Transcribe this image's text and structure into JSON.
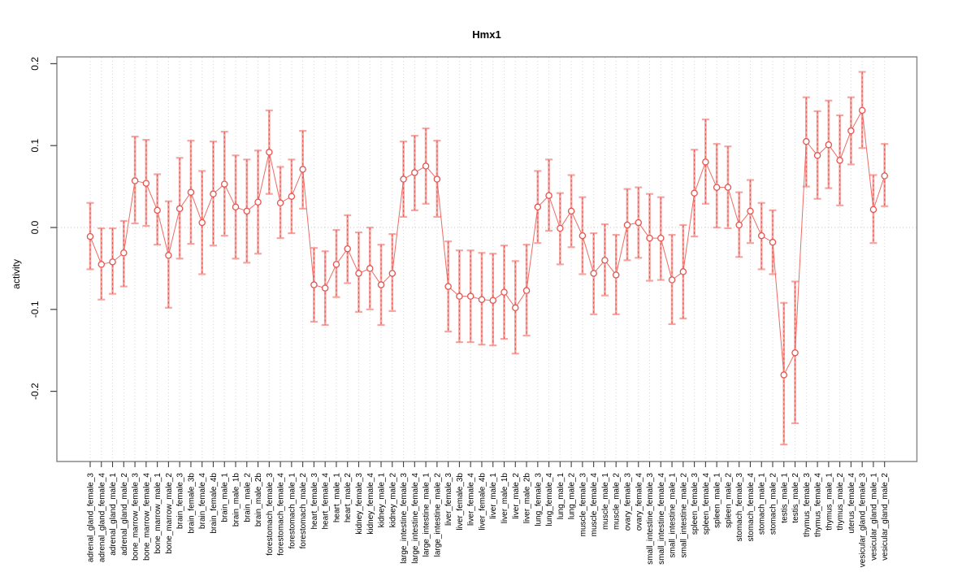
{
  "page": {
    "background": "#ffffff"
  },
  "chart_data": {
    "type": "scatter",
    "title": "Hmx1",
    "xlabel": "",
    "ylabel": "activity",
    "ylim": [
      -0.286,
      0.208
    ],
    "yticks": [
      0.2,
      0.1,
      0.0,
      -0.1,
      -0.2
    ],
    "ytick_labels": [
      "0.2",
      "0.1",
      "0.0",
      "-0.1",
      "-0.2"
    ],
    "grid": "vertical dotted gridline at each category; horizontal dotted line at 0",
    "legend": "none",
    "error_bars": true,
    "categories": [
      "adrenal_gland_female_3",
      "adrenal_gland_female_4",
      "adrenal_gland_male_1",
      "adrenal_gland_male_2",
      "bone_marrow_female_3",
      "bone_marrow_female_4",
      "bone_marrow_male_1",
      "bone_marrow_male_2",
      "brain_female_3",
      "brain_female_3b",
      "brain_female_4",
      "brain_female_4b",
      "brain_male_1",
      "brain_male_1b",
      "brain_male_2",
      "brain_male_2b",
      "forestomach_female_3",
      "forestomach_female_4",
      "forestomach_male_1",
      "forestomach_male_2",
      "heart_female_3",
      "heart_female_4",
      "heart_male_1",
      "heart_male_2",
      "kidney_female_3",
      "kidney_female_4",
      "kidney_male_1",
      "kidney_male_2",
      "large_intestine_female_3",
      "large_intestine_female_4",
      "large_intestine_male_1",
      "large_intestine_male_2",
      "liver_female_3",
      "liver_female_3b",
      "liver_female_4",
      "liver_female_4b",
      "liver_male_1",
      "liver_male_1b",
      "liver_male_2",
      "liver_male_2b",
      "lung_female_3",
      "lung_female_4",
      "lung_male_1",
      "lung_male_2",
      "muscle_female_3",
      "muscle_female_4",
      "muscle_male_1",
      "muscle_male_2",
      "ovary_female_3",
      "ovary_female_4",
      "small_intestine_female_3",
      "small_intestine_female_4",
      "small_intestine_male_1",
      "small_intestine_male_2",
      "spleen_female_3",
      "spleen_female_4",
      "spleen_male_1",
      "spleen_male_2",
      "stomach_female_3",
      "stomach_female_4",
      "stomach_male_1",
      "stomach_male_2",
      "testis_male_1",
      "testis_male_2",
      "thymus_female_3",
      "thymus_female_4",
      "thymus_male_1",
      "thymus_male_2",
      "uterus_female_4",
      "vesicular_gland_female_3",
      "vesicular_gland_male_1",
      "vesicular_gland_male_2"
    ],
    "series": [
      {
        "name": "activity",
        "values": [
          -0.011,
          -0.045,
          -0.042,
          -0.031,
          0.057,
          0.054,
          0.021,
          -0.034,
          0.023,
          0.043,
          0.006,
          0.041,
          0.053,
          0.025,
          0.02,
          0.031,
          0.092,
          0.03,
          0.038,
          0.071,
          -0.07,
          -0.074,
          -0.045,
          -0.026,
          -0.056,
          -0.05,
          -0.07,
          -0.056,
          0.059,
          0.067,
          0.075,
          0.059,
          -0.072,
          -0.084,
          -0.084,
          -0.088,
          -0.089,
          -0.079,
          -0.098,
          -0.077,
          0.025,
          0.039,
          -0.001,
          0.02,
          -0.01,
          -0.056,
          -0.04,
          -0.058,
          0.003,
          0.006,
          -0.013,
          -0.013,
          -0.064,
          -0.054,
          0.042,
          0.08,
          0.049,
          0.049,
          0.003,
          0.02,
          -0.01,
          -0.018,
          -0.18,
          -0.153,
          0.105,
          0.088,
          0.101,
          0.082,
          0.118,
          0.143,
          0.022,
          0.063
        ],
        "ci_low": [
          -0.051,
          -0.088,
          -0.081,
          -0.072,
          0.005,
          0.002,
          -0.021,
          -0.098,
          -0.038,
          -0.02,
          -0.057,
          -0.022,
          -0.01,
          -0.038,
          -0.043,
          -0.032,
          0.041,
          -0.013,
          -0.007,
          0.023,
          -0.115,
          -0.119,
          -0.085,
          -0.068,
          -0.103,
          -0.1,
          -0.119,
          -0.102,
          0.013,
          0.021,
          0.029,
          0.013,
          -0.127,
          -0.14,
          -0.14,
          -0.143,
          -0.144,
          -0.136,
          -0.154,
          -0.132,
          -0.019,
          -0.004,
          -0.045,
          -0.024,
          -0.057,
          -0.106,
          -0.083,
          -0.106,
          -0.04,
          -0.037,
          -0.065,
          -0.064,
          -0.118,
          -0.111,
          -0.011,
          0.029,
          0.0,
          -0.001,
          -0.036,
          -0.019,
          -0.051,
          -0.057,
          -0.265,
          -0.239,
          0.05,
          0.035,
          0.048,
          0.027,
          0.077,
          0.097,
          -0.019,
          0.026
        ],
        "ci_high": [
          0.03,
          -0.001,
          -0.001,
          0.008,
          0.111,
          0.107,
          0.065,
          0.032,
          0.085,
          0.106,
          0.069,
          0.105,
          0.117,
          0.088,
          0.083,
          0.094,
          0.143,
          0.074,
          0.083,
          0.118,
          -0.025,
          -0.029,
          -0.003,
          0.015,
          -0.006,
          0.0,
          -0.021,
          -0.008,
          0.105,
          0.112,
          0.121,
          0.106,
          -0.017,
          -0.028,
          -0.028,
          -0.031,
          -0.032,
          -0.022,
          -0.041,
          -0.021,
          0.069,
          0.083,
          0.042,
          0.064,
          0.037,
          -0.007,
          0.004,
          -0.009,
          0.047,
          0.049,
          0.041,
          0.037,
          -0.009,
          0.003,
          0.095,
          0.132,
          0.102,
          0.099,
          0.043,
          0.058,
          0.03,
          0.021,
          -0.092,
          -0.066,
          0.159,
          0.142,
          0.155,
          0.137,
          0.159,
          0.19,
          0.064,
          0.102
        ]
      }
    ],
    "colors": {
      "point": "#e8534e",
      "line": "#ef6a64",
      "error_bar": "#f5a6a2",
      "error_bar_dash": "#e8534e",
      "grid": "#d6d6d6",
      "zero_line": "#c4c4c4",
      "frame": "#8a8a8a",
      "tick": "#404040",
      "text": "#000000"
    }
  }
}
